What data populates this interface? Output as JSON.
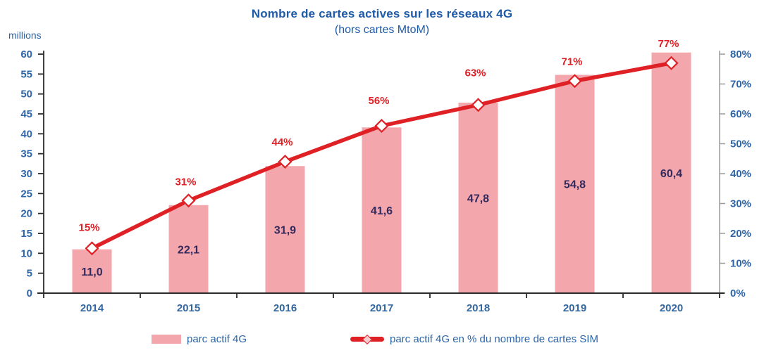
{
  "header": {
    "title": "Nombre de cartes actives sur les réseaux 4G",
    "subtitle": "(hors cartes MtoM)"
  },
  "chart_data": {
    "type": "bar",
    "combo": "bar+line",
    "title": "Nombre de cartes actives sur les réseaux 4G",
    "subtitle": "(hors cartes MtoM)",
    "categories": [
      "2014",
      "2015",
      "2016",
      "2017",
      "2018",
      "2019",
      "2020"
    ],
    "series": [
      {
        "name": "parc actif 4G",
        "type": "bar",
        "axis": "left",
        "values": [
          11.0,
          22.1,
          31.9,
          41.6,
          47.8,
          54.8,
          60.4
        ],
        "value_labels": [
          "11,0",
          "22,1",
          "31,9",
          "41,6",
          "47,8",
          "54,8",
          "60,4"
        ]
      },
      {
        "name": "parc actif 4G en % du nombre de cartes SIM",
        "type": "line",
        "axis": "right",
        "marker": "diamond",
        "values": [
          15,
          31,
          44,
          56,
          63,
          71,
          77
        ],
        "value_labels": [
          "15%",
          "31%",
          "44%",
          "56%",
          "63%",
          "71%",
          "77%"
        ]
      }
    ],
    "left_axis": {
      "label": "millions",
      "min": 0,
      "max": 60,
      "step": 5,
      "ticks": [
        "0",
        "5",
        "10",
        "15",
        "20",
        "25",
        "30",
        "35",
        "40",
        "45",
        "50",
        "55",
        "60"
      ]
    },
    "right_axis": {
      "min": 0,
      "max": 80,
      "step": 10,
      "ticks": [
        "0%",
        "10%",
        "20%",
        "30%",
        "40%",
        "50%",
        "60%",
        "70%",
        "80%"
      ]
    },
    "grid": false,
    "legend_position": "bottom"
  },
  "legend": {
    "items": [
      {
        "label": "parc actif 4G",
        "marker": "bar-swatch"
      },
      {
        "label": "parc actif 4G en % du nombre de cartes SIM",
        "marker": "line-diamond"
      }
    ]
  },
  "colors": {
    "bar_fill": "#F3A6AC",
    "line_red": "#DF2025",
    "marker_fill": "#FFFFFF",
    "title_blue": "#1E5BA8",
    "tick_blue": "#2D65A9",
    "category_blue": "#34679F",
    "bar_label_navy": "#312A5E",
    "pct_label_red": "#DF2025",
    "axis_dark": "#2B2B2B",
    "axis_right_gray": "#9B9B9B"
  }
}
